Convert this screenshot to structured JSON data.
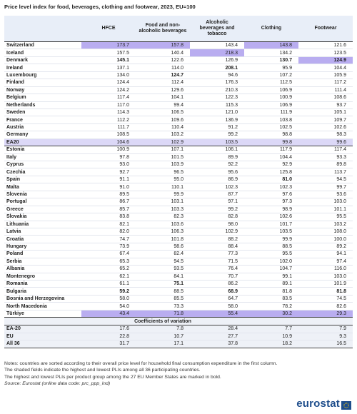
{
  "title": "Price level index for food, beverages, clothing and footwear, 2023, EU=100",
  "headers": [
    "",
    "HFCE",
    "Food and non-alcoholic beverages",
    "Alcoholic beverages and tobacco",
    "Clothing",
    "Footwear"
  ],
  "rows": [
    {
      "country": "Switzerland",
      "values": [
        "173.7",
        "157.8",
        "143.4",
        "143.8",
        "121.6"
      ],
      "highlight": [
        0,
        1,
        3
      ],
      "bold": []
    },
    {
      "country": "Iceland",
      "values": [
        "157.5",
        "140.4",
        "218.3",
        "134.2",
        "123.5"
      ],
      "highlight": [
        2
      ],
      "bold": []
    },
    {
      "country": "Denmark",
      "values": [
        "145.1",
        "122.6",
        "126.9",
        "130.7",
        "124.9"
      ],
      "highlight": [
        4
      ],
      "bold": [
        0,
        3,
        4
      ]
    },
    {
      "country": "Ireland",
      "values": [
        "137.1",
        "114.0",
        "208.1",
        "95.9",
        "104.4"
      ],
      "highlight": [],
      "bold": [
        2
      ]
    },
    {
      "country": "Luxembourg",
      "values": [
        "134.0",
        "124.7",
        "94.6",
        "107.2",
        "105.9"
      ],
      "highlight": [],
      "bold": [
        1
      ]
    },
    {
      "country": "Finland",
      "values": [
        "124.4",
        "112.4",
        "176.3",
        "112.5",
        "117.2"
      ],
      "highlight": [],
      "bold": []
    },
    {
      "country": "Norway",
      "values": [
        "124.2",
        "129.6",
        "210.3",
        "106.9",
        "111.4"
      ],
      "highlight": [],
      "bold": []
    },
    {
      "country": "Belgium",
      "values": [
        "117.4",
        "104.1",
        "122.3",
        "100.9",
        "108.6"
      ],
      "highlight": [],
      "bold": []
    },
    {
      "country": "Netherlands",
      "values": [
        "117.0",
        "99.4",
        "115.3",
        "106.9",
        "93.7"
      ],
      "highlight": [],
      "bold": []
    },
    {
      "country": "Sweden",
      "values": [
        "114.3",
        "106.5",
        "121.0",
        "111.9",
        "105.1"
      ],
      "highlight": [],
      "bold": []
    },
    {
      "country": "France",
      "values": [
        "112.2",
        "109.6",
        "136.9",
        "103.8",
        "109.7"
      ],
      "highlight": [],
      "bold": []
    },
    {
      "country": "Austria",
      "values": [
        "111.7",
        "110.4",
        "91.2",
        "102.5",
        "102.6"
      ],
      "highlight": [],
      "bold": []
    },
    {
      "country": "Germany",
      "values": [
        "108.5",
        "103.2",
        "99.2",
        "98.8",
        "98.3"
      ],
      "highlight": [],
      "bold": []
    },
    {
      "country": "EA20",
      "values": [
        "104.6",
        "102.9",
        "103.5",
        "99.8",
        "99.6"
      ],
      "highlight": [],
      "bold": [],
      "type": "ea"
    },
    {
      "country": "Estonia",
      "values": [
        "100.9",
        "107.1",
        "106.1",
        "117.9",
        "117.4"
      ],
      "highlight": [],
      "bold": []
    },
    {
      "country": "Italy",
      "values": [
        "97.8",
        "101.5",
        "89.9",
        "104.4",
        "93.3"
      ],
      "highlight": [],
      "bold": []
    },
    {
      "country": "Cyprus",
      "values": [
        "93.0",
        "103.9",
        "92.2",
        "92.9",
        "89.8"
      ],
      "highlight": [],
      "bold": []
    },
    {
      "country": "Czechia",
      "values": [
        "92.7",
        "96.5",
        "95.6",
        "125.8",
        "113.7"
      ],
      "highlight": [],
      "bold": []
    },
    {
      "country": "Spain",
      "values": [
        "91.1",
        "95.0",
        "86.9",
        "81.0",
        "94.5"
      ],
      "highlight": [],
      "bold": [
        3
      ]
    },
    {
      "country": "Malta",
      "values": [
        "91.0",
        "110.1",
        "102.3",
        "102.3",
        "99.7"
      ],
      "highlight": [],
      "bold": []
    },
    {
      "country": "Slovenia",
      "values": [
        "89.5",
        "99.9",
        "87.7",
        "97.6",
        "93.6"
      ],
      "highlight": [],
      "bold": []
    },
    {
      "country": "Portugal",
      "values": [
        "86.7",
        "103.1",
        "97.1",
        "97.3",
        "103.0"
      ],
      "highlight": [],
      "bold": []
    },
    {
      "country": "Greece",
      "values": [
        "85.7",
        "103.3",
        "99.2",
        "98.9",
        "101.1"
      ],
      "highlight": [],
      "bold": []
    },
    {
      "country": "Slovakia",
      "values": [
        "83.8",
        "82.3",
        "82.8",
        "102.6",
        "95.5"
      ],
      "highlight": [],
      "bold": []
    },
    {
      "country": "Lithuania",
      "values": [
        "82.1",
        "103.6",
        "98.0",
        "101.7",
        "103.2"
      ],
      "highlight": [],
      "bold": []
    },
    {
      "country": "Latvia",
      "values": [
        "82.0",
        "106.3",
        "102.9",
        "103.5",
        "108.0"
      ],
      "highlight": [],
      "bold": []
    },
    {
      "country": "Croatia",
      "values": [
        "74.7",
        "101.8",
        "88.2",
        "99.9",
        "100.0"
      ],
      "highlight": [],
      "bold": []
    },
    {
      "country": "Hungary",
      "values": [
        "73.9",
        "98.6",
        "88.4",
        "88.5",
        "89.2"
      ],
      "highlight": [],
      "bold": []
    },
    {
      "country": "Poland",
      "values": [
        "67.4",
        "82.4",
        "77.3",
        "95.5",
        "94.1"
      ],
      "highlight": [],
      "bold": []
    },
    {
      "country": "Serbia",
      "values": [
        "65.3",
        "94.5",
        "71.5",
        "102.0",
        "97.4"
      ],
      "highlight": [],
      "bold": []
    },
    {
      "country": "Albania",
      "values": [
        "65.2",
        "93.5",
        "76.4",
        "104.7",
        "116.0"
      ],
      "highlight": [],
      "bold": []
    },
    {
      "country": "Montenegro",
      "values": [
        "62.1",
        "84.1",
        "70.7",
        "99.1",
        "103.0"
      ],
      "highlight": [],
      "bold": []
    },
    {
      "country": "Romania",
      "values": [
        "61.1",
        "75.1",
        "86.2",
        "89.1",
        "101.9"
      ],
      "highlight": [],
      "bold": [
        1
      ]
    },
    {
      "country": "Bulgaria",
      "values": [
        "59.2",
        "88.5",
        "68.9",
        "81.8",
        "81.8"
      ],
      "highlight": [],
      "bold": [
        0,
        2,
        4
      ]
    },
    {
      "country": "Bosnia and Herzegovina",
      "values": [
        "58.0",
        "85.5",
        "64.7",
        "83.5",
        "74.5"
      ],
      "highlight": [],
      "bold": []
    },
    {
      "country": "North Macedonia",
      "values": [
        "54.0",
        "73.3",
        "58.0",
        "78.2",
        "82.6"
      ],
      "highlight": [],
      "bold": []
    },
    {
      "country": "Türkiye",
      "values": [
        "43.4",
        "71.8",
        "55.4",
        "30.2",
        "29.3"
      ],
      "highlight": [
        0,
        1,
        2,
        3,
        4
      ],
      "bold": [],
      "type": "tk"
    }
  ],
  "cov_title": "Coefficients of variation",
  "cov_rows": [
    {
      "country": "EA-20",
      "values": [
        "17.6",
        "7.8",
        "28.4",
        "7.7",
        "7.9"
      ]
    },
    {
      "country": "EU",
      "values": [
        "22.8",
        "10.7",
        "27.7",
        "10.9",
        "9.3"
      ]
    },
    {
      "country": "All 36",
      "values": [
        "31.7",
        "17.1",
        "37.8",
        "18.2",
        "16.5"
      ]
    }
  ],
  "notes": [
    "Notes: countries are sorted according to their overall price level for household final consumption expenditure in the first column.",
    "The shaded fields indicate the highest and lowest PLIs among all 36 participating countries.",
    "The highest and lowest PLIs per product group among the 27 EU Member States are marked in bold."
  ],
  "source": "Source: Eurostat (online data code: prc_ppp_ind)",
  "logo_text": "eurostat",
  "colors": {
    "header_bg": "#e8eef8",
    "ea_bg": "#dcd8f7",
    "highlight": "#b9adf0",
    "brand": "#1f4e8c",
    "logo_star": "#f1c40f"
  }
}
